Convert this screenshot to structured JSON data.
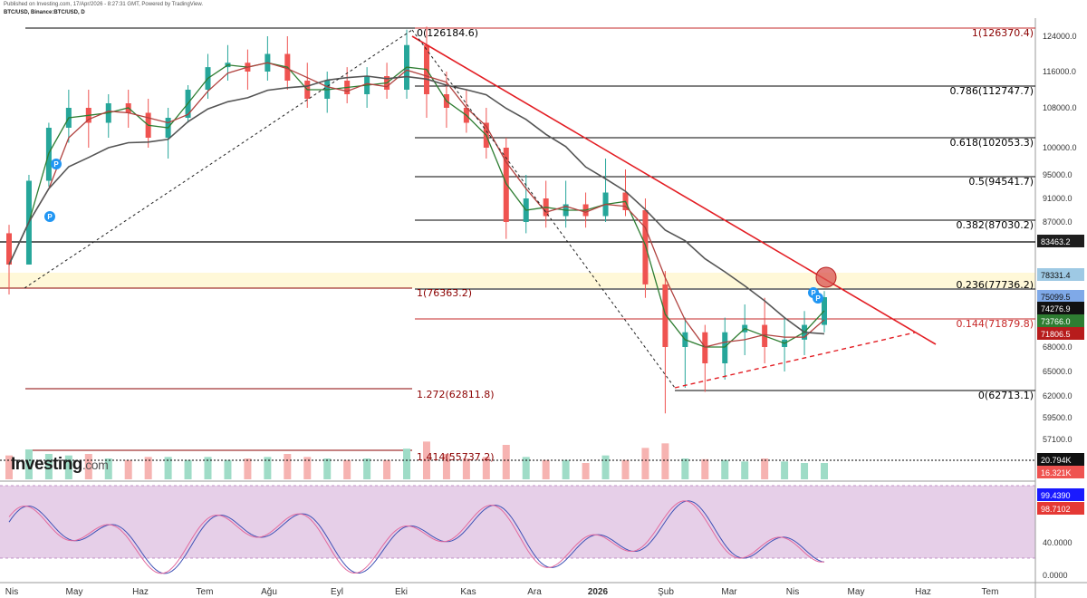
{
  "header": {
    "published": "Published on Investing.com, 17/Apr/2026 - 8:27:31 GMT, Powered by TradingView.",
    "symbol": "BTC/USD, Binance:BTC/USD, D"
  },
  "logo": {
    "text": "Investing",
    "suffix": ".com"
  },
  "colors": {
    "up": "#26a69a",
    "down": "#ef5350",
    "fib": "#000000",
    "trend": "#e31e24",
    "ema_short": "#2e7d32",
    "ema_mid": "#b0413e",
    "ma_long": "#555555",
    "stoch_k": "#3f51b5",
    "stoch_d": "#e26a9e"
  },
  "chart_data": {
    "type": "candlestick",
    "x_axis": {
      "labels": [
        "Nis",
        "May",
        "Haz",
        "Tem",
        "Ağu",
        "Eyl",
        "Eki",
        "Kas",
        "Ara",
        "2026",
        "Şub",
        "Mar",
        "Nis",
        "May",
        "Haz",
        "Tem"
      ]
    },
    "price_axis": {
      "ticks": [
        "124000.0",
        "116000.0",
        "108000.0",
        "100000.0",
        "95000.0",
        "91000.0",
        "87000.0",
        "83463.2",
        "78331.4",
        "75099.5",
        "74276.9",
        "73766.0",
        "71806.5",
        "68000.0",
        "65000.0",
        "62000.0",
        "59500.0",
        "57100.0",
        "20.794K",
        "16.321K"
      ],
      "badges": [
        {
          "text": "83463.2",
          "bg": "#1e1e1e"
        },
        {
          "text": "78331.4",
          "bg": "#9ec9e4"
        },
        {
          "text": "75099.5",
          "bg": "#7fa9e8"
        },
        {
          "text": "74276.9",
          "bg": "#111111"
        },
        {
          "text": "73766.0",
          "bg": "#2e7d32"
        },
        {
          "text": "71806.5",
          "bg": "#b71c1c"
        },
        {
          "text": "20.794K",
          "bg": "#111111"
        },
        {
          "text": "16.321K",
          "bg": "#ef5350"
        }
      ]
    },
    "fib_retracement": {
      "top": "0(126184.6)",
      "levels": [
        "1(126370.4)",
        "0.786(112747.7)",
        "0.618(102053.3)",
        "0.5(94541.7)",
        "0.382(87030.2)",
        "0.236(77736.2)",
        "0.144(71879.8)",
        "0(62713.1)"
      ]
    },
    "fib_extension": {
      "levels": [
        "1(76363.2)",
        "1.272(62811.8)",
        "1.414(55737.2)"
      ]
    },
    "ohlc_weekly": [
      [
        85000,
        86500,
        75500,
        80000
      ],
      [
        80000,
        95000,
        80000,
        94000
      ],
      [
        94000,
        105000,
        93000,
        104000
      ],
      [
        104000,
        112000,
        101000,
        108000
      ],
      [
        108000,
        112000,
        100000,
        105000
      ],
      [
        105000,
        111000,
        102000,
        109000
      ],
      [
        109000,
        112000,
        104000,
        107000
      ],
      [
        107000,
        110000,
        100000,
        102000
      ],
      [
        102000,
        108000,
        98000,
        106000
      ],
      [
        106000,
        113000,
        105000,
        112000
      ],
      [
        112000,
        120000,
        110000,
        117000
      ],
      [
        117000,
        122000,
        114000,
        118000
      ],
      [
        118000,
        121000,
        112000,
        116000
      ],
      [
        116000,
        124000,
        114000,
        120000
      ],
      [
        120000,
        124000,
        112000,
        114000
      ],
      [
        114000,
        118000,
        108000,
        110000
      ],
      [
        110000,
        116000,
        107000,
        114000
      ],
      [
        114000,
        117000,
        109000,
        111000
      ],
      [
        111000,
        117000,
        108000,
        115000
      ],
      [
        115000,
        118000,
        110000,
        112000
      ],
      [
        112000,
        125500,
        110000,
        122000
      ],
      [
        122000,
        126184,
        106000,
        111000
      ],
      [
        111000,
        116000,
        104000,
        108000
      ],
      [
        108000,
        112000,
        103000,
        105000
      ],
      [
        105000,
        108000,
        98000,
        100000
      ],
      [
        100000,
        102000,
        84000,
        87000
      ],
      [
        87000,
        95000,
        85000,
        91000
      ],
      [
        91000,
        94000,
        86000,
        88000
      ],
      [
        88000,
        94000,
        86000,
        90000
      ],
      [
        90000,
        92000,
        86000,
        88000
      ],
      [
        88000,
        98000,
        87000,
        92000
      ],
      [
        92000,
        96000,
        88000,
        89000
      ],
      [
        89000,
        91000,
        75000,
        77000
      ],
      [
        77000,
        79000,
        60000,
        68000
      ],
      [
        68000,
        72000,
        63000,
        70000
      ],
      [
        70000,
        71000,
        62500,
        66000
      ],
      [
        66000,
        72000,
        64000,
        70000
      ],
      [
        70000,
        74000,
        67000,
        71000
      ],
      [
        71000,
        75000,
        66000,
        68000
      ],
      [
        68000,
        72000,
        65000,
        69000
      ],
      [
        69000,
        73000,
        67000,
        71000
      ],
      [
        71000,
        76000,
        70000,
        75099
      ]
    ],
    "volume_axis": {
      "labels": [
        "20.794K",
        "16.321K"
      ]
    },
    "stochastic": {
      "k_label": "99.4390",
      "d_label": "98.7102",
      "axis_ticks": [
        "99.4390",
        "98.7102",
        "40.0000",
        "0.0000"
      ],
      "upper_band": 80,
      "lower_band": 20
    },
    "markers": [
      {
        "label": "P"
      },
      {
        "label": "P"
      },
      {
        "label": "P"
      },
      {
        "label": "P"
      }
    ]
  }
}
